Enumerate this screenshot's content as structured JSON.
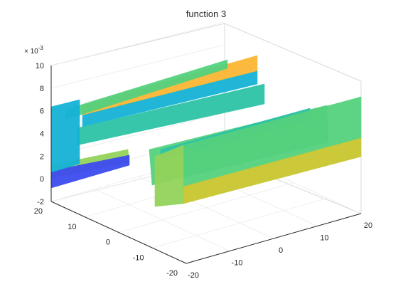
{
  "chart_data": {
    "type": "surface",
    "title": "function 3",
    "zlabel": "",
    "xlabel": "",
    "ylabel": "",
    "z_exponent_label": "× 10^-3",
    "x_ticks": [
      -20,
      -10,
      0,
      10,
      20
    ],
    "y_ticks": [
      -20,
      -10,
      0,
      10,
      20
    ],
    "z_ticks": [
      -2,
      0,
      2,
      4,
      6,
      8,
      10
    ],
    "x_range": [
      -20,
      20
    ],
    "y_range": [
      -20,
      20
    ],
    "z_range": [
      -2,
      10
    ],
    "grid": true,
    "colormap": [
      "#3e4cf0",
      "#16b3d6",
      "#2ec4a6",
      "#55d17e",
      "#93d35a",
      "#c9c730",
      "#fbb734"
    ]
  }
}
